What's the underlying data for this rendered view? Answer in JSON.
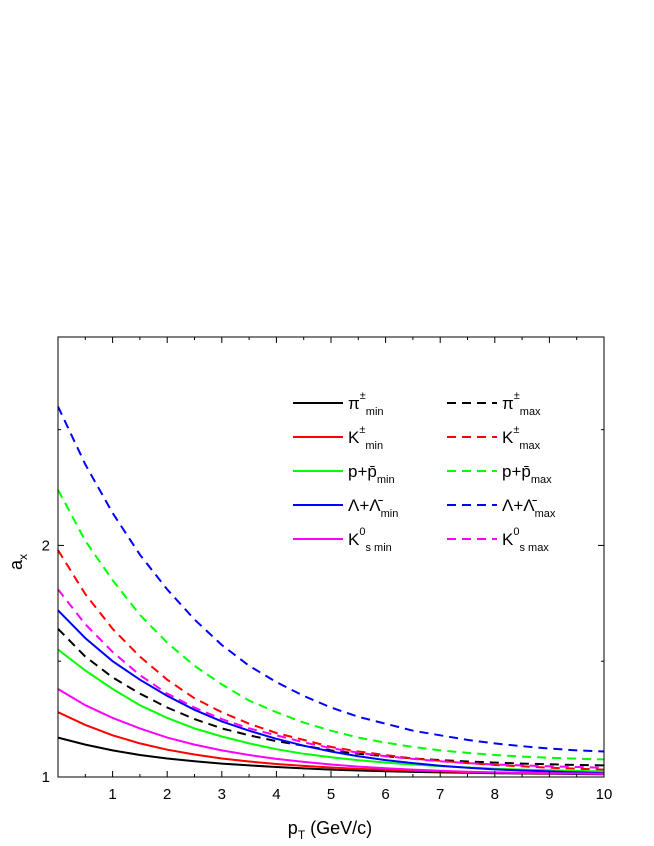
{
  "chart_data": {
    "type": "line",
    "xlabel": "p",
    "xlabel_sub": "T",
    "xlabel_unit": "(GeV/c)",
    "ylabel": "a",
    "ylabel_sub": "x",
    "xlim": [
      0,
      10
    ],
    "ylim": [
      1,
      2.9
    ],
    "x_ticks": [
      "1",
      "2",
      "3",
      "4",
      "5",
      "6",
      "7",
      "8",
      "9",
      "10"
    ],
    "y_ticks": [
      "1",
      "2"
    ],
    "legend_position": "top-right",
    "grid": false,
    "x": [
      0,
      0.5,
      1,
      1.5,
      2,
      2.5,
      3,
      3.5,
      4,
      4.5,
      5,
      5.5,
      6,
      6.5,
      7,
      7.5,
      8,
      8.5,
      9,
      9.5,
      10
    ],
    "series": [
      {
        "base": "π",
        "sup": "±",
        "sub": "min",
        "color": "#000000",
        "dash": false,
        "values": [
          1.17,
          1.14,
          1.115,
          1.095,
          1.08,
          1.068,
          1.058,
          1.05,
          1.043,
          1.037,
          1.032,
          1.028,
          1.025,
          1.022,
          1.02,
          1.018,
          1.016,
          1.015,
          1.014,
          1.013,
          1.012
        ]
      },
      {
        "base": "π",
        "sup": "±",
        "sub": "max",
        "color": "#000000",
        "dash": true,
        "values": [
          1.64,
          1.52,
          1.43,
          1.36,
          1.3,
          1.25,
          1.21,
          1.18,
          1.155,
          1.135,
          1.115,
          1.1,
          1.09,
          1.08,
          1.073,
          1.067,
          1.062,
          1.058,
          1.055,
          1.052,
          1.05
        ]
      },
      {
        "base": "K",
        "sup": "±",
        "sub": "min",
        "color": "#ff0000",
        "dash": false,
        "values": [
          1.28,
          1.225,
          1.18,
          1.145,
          1.118,
          1.097,
          1.08,
          1.067,
          1.056,
          1.048,
          1.041,
          1.035,
          1.031,
          1.027,
          1.024,
          1.021,
          1.019,
          1.017,
          1.016,
          1.015,
          1.014
        ]
      },
      {
        "base": "K",
        "sup": "±",
        "sub": "max",
        "color": "#ff0000",
        "dash": true,
        "values": [
          1.98,
          1.79,
          1.64,
          1.52,
          1.42,
          1.34,
          1.28,
          1.23,
          1.19,
          1.16,
          1.13,
          1.11,
          1.095,
          1.08,
          1.07,
          1.06,
          1.052,
          1.046,
          1.04,
          1.036,
          1.032
        ]
      },
      {
        "base": "p+p̄",
        "sup": "",
        "sub": "min",
        "color": "#00ff00",
        "dash": false,
        "values": [
          1.55,
          1.46,
          1.38,
          1.31,
          1.255,
          1.21,
          1.175,
          1.145,
          1.12,
          1.1,
          1.085,
          1.072,
          1.062,
          1.054,
          1.047,
          1.041,
          1.036,
          1.032,
          1.029,
          1.026,
          1.024
        ]
      },
      {
        "base": "p+p̄",
        "sup": "",
        "sub": "max",
        "color": "#00ff00",
        "dash": true,
        "values": [
          2.24,
          2.02,
          1.85,
          1.7,
          1.58,
          1.48,
          1.4,
          1.33,
          1.28,
          1.235,
          1.2,
          1.17,
          1.148,
          1.13,
          1.115,
          1.104,
          1.095,
          1.088,
          1.083,
          1.079,
          1.076
        ]
      },
      {
        "base": "Λ+Λ̄",
        "sup": "",
        "sub": "min",
        "color": "#0000ff",
        "dash": false,
        "values": [
          1.72,
          1.6,
          1.5,
          1.42,
          1.35,
          1.29,
          1.24,
          1.2,
          1.165,
          1.135,
          1.11,
          1.09,
          1.073,
          1.06,
          1.049,
          1.04,
          1.033,
          1.028,
          1.024,
          1.02,
          1.017
        ]
      },
      {
        "base": "Λ+Λ̄",
        "sup": "",
        "sub": "max",
        "color": "#0000ff",
        "dash": true,
        "values": [
          2.6,
          2.35,
          2.14,
          1.96,
          1.81,
          1.68,
          1.57,
          1.48,
          1.41,
          1.35,
          1.3,
          1.26,
          1.23,
          1.2,
          1.18,
          1.16,
          1.145,
          1.133,
          1.123,
          1.115,
          1.11
        ]
      },
      {
        "base": "K",
        "sup": "0",
        "sub": "s min",
        "color": "#ff00ff",
        "dash": false,
        "values": [
          1.38,
          1.31,
          1.255,
          1.21,
          1.17,
          1.14,
          1.115,
          1.095,
          1.078,
          1.065,
          1.054,
          1.045,
          1.038,
          1.032,
          1.027,
          1.023,
          1.02,
          1.018,
          1.016,
          1.015,
          1.014
        ]
      },
      {
        "base": "K",
        "sup": "0",
        "sub": "s max",
        "color": "#ff00ff",
        "dash": true,
        "values": [
          1.81,
          1.66,
          1.54,
          1.44,
          1.36,
          1.3,
          1.25,
          1.21,
          1.18,
          1.15,
          1.125,
          1.105,
          1.09,
          1.078,
          1.068,
          1.06,
          1.054,
          1.05,
          1.046,
          1.043,
          1.04
        ]
      }
    ]
  }
}
